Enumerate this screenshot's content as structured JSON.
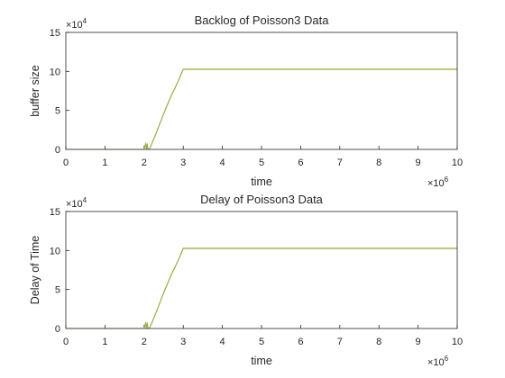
{
  "chart_data": [
    {
      "type": "line",
      "title": "Backlog of Poisson3 Data",
      "xlabel": "time",
      "ylabel": "buffer size",
      "xlim": [
        0,
        10000000
      ],
      "ylim": [
        0,
        150000
      ],
      "x_exponent_label": "×10",
      "x_exponent_power": "6",
      "y_exponent_label": "×10",
      "y_exponent_power": "4",
      "x_ticks": [
        "0",
        "1",
        "2",
        "3",
        "4",
        "5",
        "6",
        "7",
        "8",
        "9",
        "10"
      ],
      "y_ticks": [
        "0",
        "5",
        "10",
        "15"
      ],
      "grid": false,
      "series": [
        {
          "color": "#d9a83a",
          "x": [
            0,
            1000000,
            2000000,
            2040000,
            2060000,
            2080000,
            2100000,
            2120000,
            2150000,
            2200000,
            2300000,
            2400000,
            2500000,
            2600000,
            2700000,
            2800000,
            2900000,
            3000000,
            4000000,
            5000000,
            6000000,
            7000000,
            8000000,
            9000000,
            10000000
          ],
          "y": [
            0,
            0,
            0,
            8000,
            0,
            7500,
            0,
            0,
            2000,
            8000,
            20000,
            33000,
            46000,
            58000,
            70000,
            80000,
            91000,
            103000,
            103000,
            103000,
            103000,
            103000,
            103000,
            103000,
            103000
          ]
        },
        {
          "color": "#8db04a",
          "x": [
            0,
            1000000,
            2000000,
            2040000,
            2060000,
            2080000,
            2100000,
            2120000,
            2150000,
            2200000,
            2300000,
            2400000,
            2500000,
            2600000,
            2700000,
            2800000,
            2900000,
            3000000,
            4000000,
            5000000,
            6000000,
            7000000,
            8000000,
            9000000,
            10000000
          ],
          "y": [
            0,
            0,
            0,
            7000,
            0,
            6500,
            0,
            0,
            1500,
            7500,
            19500,
            32500,
            45500,
            57500,
            69500,
            79500,
            90500,
            102500,
            102500,
            102500,
            102500,
            102500,
            102500,
            102500,
            102500
          ]
        }
      ]
    },
    {
      "type": "line",
      "title": "Delay of Poisson3 Data",
      "xlabel": "time",
      "ylabel": "Delay of Time",
      "xlim": [
        0,
        10000000
      ],
      "ylim": [
        0,
        150000
      ],
      "x_exponent_label": "×10",
      "x_exponent_power": "6",
      "y_exponent_label": "×10",
      "y_exponent_power": "4",
      "x_ticks": [
        "0",
        "1",
        "2",
        "3",
        "4",
        "5",
        "6",
        "7",
        "8",
        "9",
        "10"
      ],
      "y_ticks": [
        "0",
        "5",
        "10",
        "15"
      ],
      "grid": false,
      "series": [
        {
          "color": "#d9a83a",
          "x": [
            0,
            1000000,
            2000000,
            2040000,
            2060000,
            2080000,
            2100000,
            2120000,
            2150000,
            2200000,
            2300000,
            2400000,
            2500000,
            2600000,
            2700000,
            2800000,
            2900000,
            3000000,
            4000000,
            5000000,
            6000000,
            7000000,
            8000000,
            9000000,
            10000000
          ],
          "y": [
            0,
            0,
            0,
            8000,
            0,
            7500,
            0,
            0,
            2000,
            8000,
            20000,
            33000,
            46000,
            58000,
            70000,
            80000,
            91000,
            103000,
            103000,
            103000,
            103000,
            103000,
            103000,
            103000,
            103000
          ]
        },
        {
          "color": "#8db04a",
          "x": [
            0,
            1000000,
            2000000,
            2040000,
            2060000,
            2080000,
            2100000,
            2120000,
            2150000,
            2200000,
            2300000,
            2400000,
            2500000,
            2600000,
            2700000,
            2800000,
            2900000,
            3000000,
            4000000,
            5000000,
            6000000,
            7000000,
            8000000,
            9000000,
            10000000
          ],
          "y": [
            0,
            0,
            0,
            7000,
            0,
            6500,
            0,
            0,
            1500,
            7500,
            19500,
            32500,
            45500,
            57500,
            69500,
            79500,
            90500,
            102500,
            102500,
            102500,
            102500,
            102500,
            102500,
            102500,
            102500
          ]
        }
      ]
    }
  ]
}
